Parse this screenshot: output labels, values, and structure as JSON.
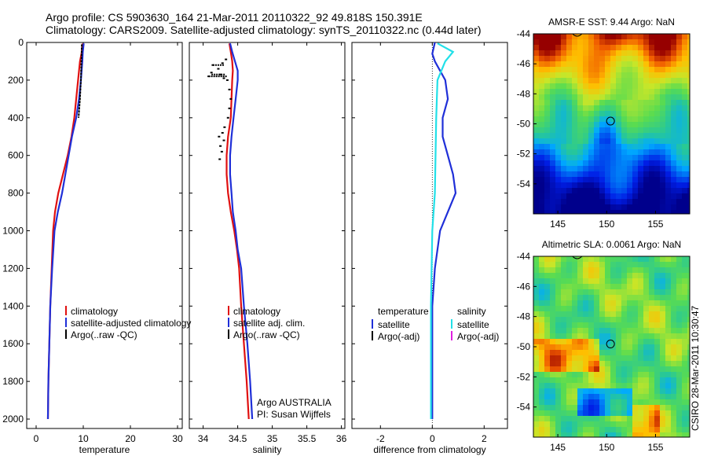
{
  "header": {
    "title_line1": "Argo profile: CS 5903630_164 21-Mar-2011 20110322_92 49.818S 150.391E",
    "title_line2": "Climatology: CARS2009. Satellite-adjusted climatology: synTS_20110322.nc (0.44d later)"
  },
  "credit": "CSIRO 28-Mar-2011 10:30:47",
  "colors": {
    "climatology": "#e01010",
    "satellite_adjusted": "#1f2fd8",
    "argo": "#000000",
    "satellite_salinity": "#22e0e8",
    "argo_salinity_adj": "#e020e0"
  },
  "chart_data": [
    {
      "id": "temperature-panel",
      "type": "line",
      "xlabel": "temperature",
      "ylabel": "",
      "xlim": [
        -2,
        31
      ],
      "ylim": [
        2050,
        0
      ],
      "y_reversed": true,
      "xticks": [
        0,
        10,
        20,
        30
      ],
      "yticks": [
        0,
        200,
        400,
        600,
        800,
        1000,
        1200,
        1400,
        1600,
        1800,
        2000
      ],
      "legend_position": "lower-right",
      "legend": [
        "climatology",
        "satellite-adjusted climatology",
        "Argo(..raw -QC)"
      ],
      "series": [
        {
          "name": "climatology",
          "color_key": "climatology",
          "points": [
            [
              9.9,
              5
            ],
            [
              9.7,
              50
            ],
            [
              9.3,
              100
            ],
            [
              8.9,
              200
            ],
            [
              8.5,
              300
            ],
            [
              8.1,
              400
            ],
            [
              7.5,
              500
            ],
            [
              6.7,
              600
            ],
            [
              5.7,
              700
            ],
            [
              4.7,
              800
            ],
            [
              4.0,
              900
            ],
            [
              3.6,
              1000
            ],
            [
              3.3,
              1200
            ],
            [
              3.0,
              1400
            ],
            [
              2.8,
              1600
            ],
            [
              2.6,
              1800
            ],
            [
              2.5,
              2000
            ]
          ]
        },
        {
          "name": "satellite-adjusted climatology",
          "color_key": "satellite_adjusted",
          "points": [
            [
              10.1,
              5
            ],
            [
              9.9,
              50
            ],
            [
              9.8,
              100
            ],
            [
              9.5,
              200
            ],
            [
              9.1,
              300
            ],
            [
              8.5,
              400
            ],
            [
              7.6,
              500
            ],
            [
              6.9,
              600
            ],
            [
              6.2,
              700
            ],
            [
              5.5,
              800
            ],
            [
              4.6,
              900
            ],
            [
              3.9,
              1000
            ],
            [
              3.4,
              1200
            ],
            [
              3.0,
              1400
            ],
            [
              2.8,
              1600
            ],
            [
              2.6,
              1800
            ],
            [
              2.5,
              2000
            ]
          ]
        },
        {
          "name": "Argo(..raw -QC)",
          "color_key": "argo",
          "points": [
            [
              9.7,
              10
            ],
            [
              9.6,
              100
            ],
            [
              9.5,
              200
            ],
            [
              9.3,
              300
            ],
            [
              9.0,
              400
            ]
          ]
        }
      ]
    },
    {
      "id": "salinity-panel",
      "type": "line",
      "xlabel": "salinity",
      "ylabel": "",
      "xlim": [
        33.8,
        36.05
      ],
      "ylim": [
        2050,
        0
      ],
      "y_reversed": true,
      "xticks": [
        34,
        34.5,
        35,
        35.5,
        36
      ],
      "xtick_labels": [
        "34",
        "34.5",
        "35",
        "35.5",
        "36"
      ],
      "legend_position": "lower-right",
      "legend": [
        "climatology",
        "satellite adj. clim.",
        "Argo(..raw -QC)"
      ],
      "annotation_lines": [
        "Argo AUSTRALIA",
        "PI: Susan Wijffels"
      ],
      "series": [
        {
          "name": "climatology",
          "color_key": "climatology",
          "points": [
            [
              34.38,
              5
            ],
            [
              34.4,
              50
            ],
            [
              34.42,
              100
            ],
            [
              34.43,
              150
            ],
            [
              34.42,
              200
            ],
            [
              34.41,
              300
            ],
            [
              34.4,
              400
            ],
            [
              34.36,
              500
            ],
            [
              34.34,
              600
            ],
            [
              34.34,
              700
            ],
            [
              34.36,
              800
            ],
            [
              34.4,
              900
            ],
            [
              34.45,
              1000
            ],
            [
              34.49,
              1100
            ],
            [
              34.52,
              1200
            ],
            [
              34.55,
              1400
            ],
            [
              34.59,
              1600
            ],
            [
              34.63,
              1800
            ],
            [
              34.66,
              2000
            ]
          ]
        },
        {
          "name": "satellite adj. clim.",
          "color_key": "satellite_adjusted",
          "points": [
            [
              34.39,
              5
            ],
            [
              34.42,
              50
            ],
            [
              34.46,
              100
            ],
            [
              34.5,
              150
            ],
            [
              34.5,
              200
            ],
            [
              34.47,
              300
            ],
            [
              34.44,
              400
            ],
            [
              34.41,
              500
            ],
            [
              34.39,
              600
            ],
            [
              34.39,
              700
            ],
            [
              34.41,
              800
            ],
            [
              34.43,
              900
            ],
            [
              34.47,
              1000
            ],
            [
              34.5,
              1100
            ],
            [
              34.55,
              1200
            ],
            [
              34.59,
              1400
            ],
            [
              34.64,
              1600
            ],
            [
              34.68,
              1800
            ],
            [
              34.71,
              2000
            ]
          ]
        },
        {
          "name": "Argo(..raw -QC)",
          "color_key": "argo",
          "points": [
            [
              34.33,
              90
            ],
            [
              34.28,
              110
            ],
            [
              34.14,
              120
            ],
            [
              34.22,
              140
            ],
            [
              34.12,
              160
            ],
            [
              34.25,
              170
            ],
            [
              34.08,
              180
            ],
            [
              34.3,
              190
            ],
            [
              34.35,
              200
            ],
            [
              34.38,
              250
            ],
            [
              34.4,
              300
            ],
            [
              34.38,
              350
            ],
            [
              34.36,
              400
            ],
            [
              34.31,
              450
            ],
            [
              34.28,
              480
            ],
            [
              34.23,
              500
            ],
            [
              34.3,
              520
            ],
            [
              34.25,
              550
            ],
            [
              34.27,
              580
            ],
            [
              34.24,
              620
            ]
          ]
        }
      ]
    },
    {
      "id": "difference-panel",
      "type": "line",
      "xlabel": "difference from climatology",
      "ylabel": "",
      "xlim": [
        -3.1,
        2.9
      ],
      "ylim": [
        2050,
        0
      ],
      "y_reversed": true,
      "xticks": [
        -2,
        0,
        2
      ],
      "xtick_labels": [
        "-2",
        "0",
        "2"
      ],
      "legend_position": "lower-center",
      "legend_groups": [
        {
          "title": "temperature",
          "entries": [
            "satellite",
            "Argo(-adj)"
          ]
        },
        {
          "title": "salinity",
          "entries": [
            "satellite",
            "Argo(-adj)"
          ]
        }
      ],
      "series": [
        {
          "name": "temperature satellite",
          "color_key": "satellite_adjusted",
          "points": [
            [
              0.1,
              0
            ],
            [
              0.0,
              60
            ],
            [
              0.1,
              100
            ],
            [
              0.5,
              200
            ],
            [
              0.6,
              300
            ],
            [
              0.4,
              400
            ],
            [
              0.4,
              500
            ],
            [
              0.6,
              600
            ],
            [
              0.8,
              700
            ],
            [
              0.9,
              800
            ],
            [
              0.6,
              900
            ],
            [
              0.3,
              1000
            ],
            [
              0.1,
              1200
            ],
            [
              0.0,
              1400
            ],
            [
              0.0,
              1600
            ],
            [
              0.0,
              1800
            ],
            [
              0.0,
              2000
            ]
          ]
        },
        {
          "name": "salinity satellite",
          "color_key": "satellite_salinity",
          "points": [
            [
              0.2,
              5
            ],
            [
              0.8,
              50
            ],
            [
              0.5,
              100
            ],
            [
              0.2,
              200
            ],
            [
              0.15,
              400
            ],
            [
              0.1,
              800
            ],
            [
              0.0,
              1000
            ],
            [
              -0.05,
              1400
            ],
            [
              -0.05,
              2000
            ]
          ]
        }
      ]
    },
    {
      "id": "sst-map",
      "type": "heatmap",
      "title": "AMSR-E SST: 9.44  Argo: NaN",
      "xticks": [
        145,
        150,
        155
      ],
      "yticks": [
        -44,
        -46,
        -48,
        -50,
        -52,
        -54
      ],
      "xlim": [
        142.5,
        158.5
      ],
      "ylim": [
        -56,
        -44
      ],
      "marker": {
        "lon": 150.391,
        "lat": -49.818
      }
    },
    {
      "id": "sla-map",
      "type": "heatmap",
      "title": "Altimetric SLA: 0.0061  Argo: NaN",
      "xticks": [
        145,
        150,
        155
      ],
      "yticks": [
        -44,
        -46,
        -48,
        -50,
        -52,
        -54
      ],
      "xlim": [
        142.5,
        158.5
      ],
      "ylim": [
        -56,
        -44
      ],
      "marker": {
        "lon": 150.391,
        "lat": -49.818
      }
    }
  ]
}
